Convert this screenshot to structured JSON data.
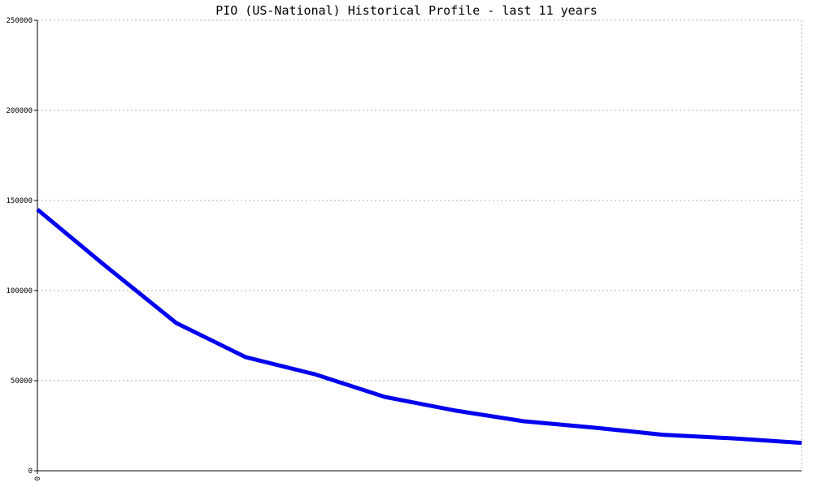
{
  "chart_data": {
    "type": "line",
    "title": "PIO (US-National) Historical Profile - last 11 years",
    "xlabel": "",
    "ylabel": "",
    "ylim": [
      0,
      250000
    ],
    "yticks": [
      0,
      50000,
      100000,
      150000,
      200000,
      250000
    ],
    "ytick_labels": [
      "0",
      "50000",
      "100000",
      "150000",
      "200000",
      "250000"
    ],
    "xticks": [
      0
    ],
    "xtick_labels": [
      "0"
    ],
    "xlim": [
      0,
      11
    ],
    "grid": true,
    "legend": "none",
    "series": [
      {
        "color": "#0000ee",
        "x": [
          0,
          1,
          2,
          3,
          4,
          5,
          6,
          7,
          8,
          9,
          10,
          11
        ],
        "values": [
          145000,
          113000,
          82000,
          63000,
          53500,
          41000,
          33500,
          27500,
          24000,
          20000,
          18000,
          15500
        ]
      }
    ]
  }
}
